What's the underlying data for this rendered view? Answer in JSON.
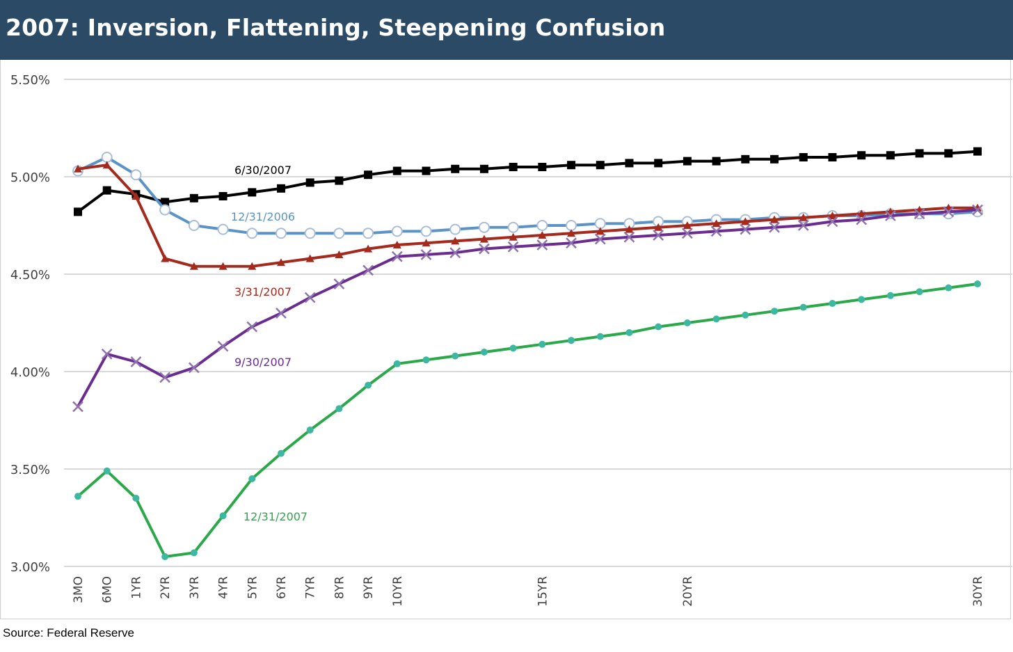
{
  "title": "2007: Inversion, Flattening, Steepening Confusion",
  "source": "Source: Federal Reserve",
  "chart_data": {
    "type": "line",
    "title": "2007: Inversion, Flattening, Steepening Confusion",
    "xlabel": "",
    "ylabel": "",
    "ylim": [
      3.0,
      5.5
    ],
    "yticks": [
      "3.00%",
      "3.50%",
      "4.00%",
      "4.50%",
      "5.00%",
      "5.50%"
    ],
    "ytick_values": [
      3.0,
      3.5,
      4.0,
      4.5,
      5.0,
      5.5
    ],
    "grid": true,
    "legend": "inline labels",
    "x_tick_labels": [
      "3MO",
      "6MO",
      "1YR",
      "2YR",
      "3YR",
      "4YR",
      "5YR",
      "6YR",
      "7YR",
      "8YR",
      "9YR",
      "10YR",
      "15YR",
      "20YR",
      "30YR"
    ],
    "x_tick_values": [
      0.25,
      0.5,
      1,
      2,
      3,
      4,
      5,
      6,
      7,
      8,
      9,
      10,
      15,
      20,
      30
    ],
    "x": [
      0.25,
      0.5,
      1,
      2,
      3,
      4,
      5,
      6,
      7,
      8,
      9,
      10,
      11,
      12,
      13,
      14,
      15,
      16,
      17,
      18,
      19,
      20,
      21,
      22,
      23,
      24,
      25,
      26,
      27,
      28,
      29,
      30
    ],
    "series": [
      {
        "name": "6/30/2007",
        "color": "#000000",
        "marker": "square",
        "values": [
          4.82,
          4.93,
          4.91,
          4.87,
          4.89,
          4.9,
          4.92,
          4.94,
          4.97,
          4.98,
          5.01,
          5.03,
          5.03,
          5.04,
          5.04,
          5.05,
          5.05,
          5.06,
          5.06,
          5.07,
          5.07,
          5.08,
          5.08,
          5.09,
          5.09,
          5.1,
          5.1,
          5.11,
          5.11,
          5.12,
          5.12,
          5.13
        ]
      },
      {
        "name": "12/31/2006",
        "color": "#5b93c7",
        "marker": "circle-open",
        "values": [
          5.03,
          5.1,
          5.01,
          4.83,
          4.75,
          4.73,
          4.71,
          4.71,
          4.71,
          4.71,
          4.71,
          4.72,
          4.72,
          4.73,
          4.74,
          4.74,
          4.75,
          4.75,
          4.76,
          4.76,
          4.77,
          4.77,
          4.78,
          4.78,
          4.79,
          4.79,
          4.8,
          4.8,
          4.81,
          4.81,
          4.81,
          4.82
        ]
      },
      {
        "name": "3/31/2007",
        "color": "#a52a1e",
        "marker": "triangle",
        "values": [
          5.04,
          5.06,
          4.9,
          4.58,
          4.54,
          4.54,
          4.54,
          4.56,
          4.58,
          4.6,
          4.63,
          4.65,
          4.66,
          4.67,
          4.68,
          4.69,
          4.7,
          4.71,
          4.72,
          4.73,
          4.74,
          4.75,
          4.76,
          4.77,
          4.78,
          4.79,
          4.8,
          4.81,
          4.82,
          4.83,
          4.84,
          4.84
        ]
      },
      {
        "name": "9/30/2007",
        "color": "#6a2c8e",
        "marker": "x",
        "values": [
          3.82,
          4.09,
          4.05,
          3.97,
          4.02,
          4.13,
          4.23,
          4.3,
          4.38,
          4.45,
          4.52,
          4.59,
          4.6,
          4.61,
          4.63,
          4.64,
          4.65,
          4.66,
          4.68,
          4.69,
          4.7,
          4.71,
          4.72,
          4.73,
          4.74,
          4.75,
          4.77,
          4.78,
          4.8,
          4.81,
          4.82,
          4.83
        ]
      },
      {
        "name": "12/31/2007",
        "color": "#2aa84a",
        "marker": "circle",
        "values": [
          3.36,
          3.49,
          3.35,
          3.05,
          3.07,
          3.26,
          3.45,
          3.58,
          3.7,
          3.81,
          3.93,
          4.04,
          4.06,
          4.08,
          4.1,
          4.12,
          4.14,
          4.16,
          4.18,
          4.2,
          4.23,
          4.25,
          4.27,
          4.29,
          4.31,
          4.33,
          4.35,
          4.37,
          4.39,
          4.41,
          4.43,
          4.45
        ]
      }
    ]
  }
}
